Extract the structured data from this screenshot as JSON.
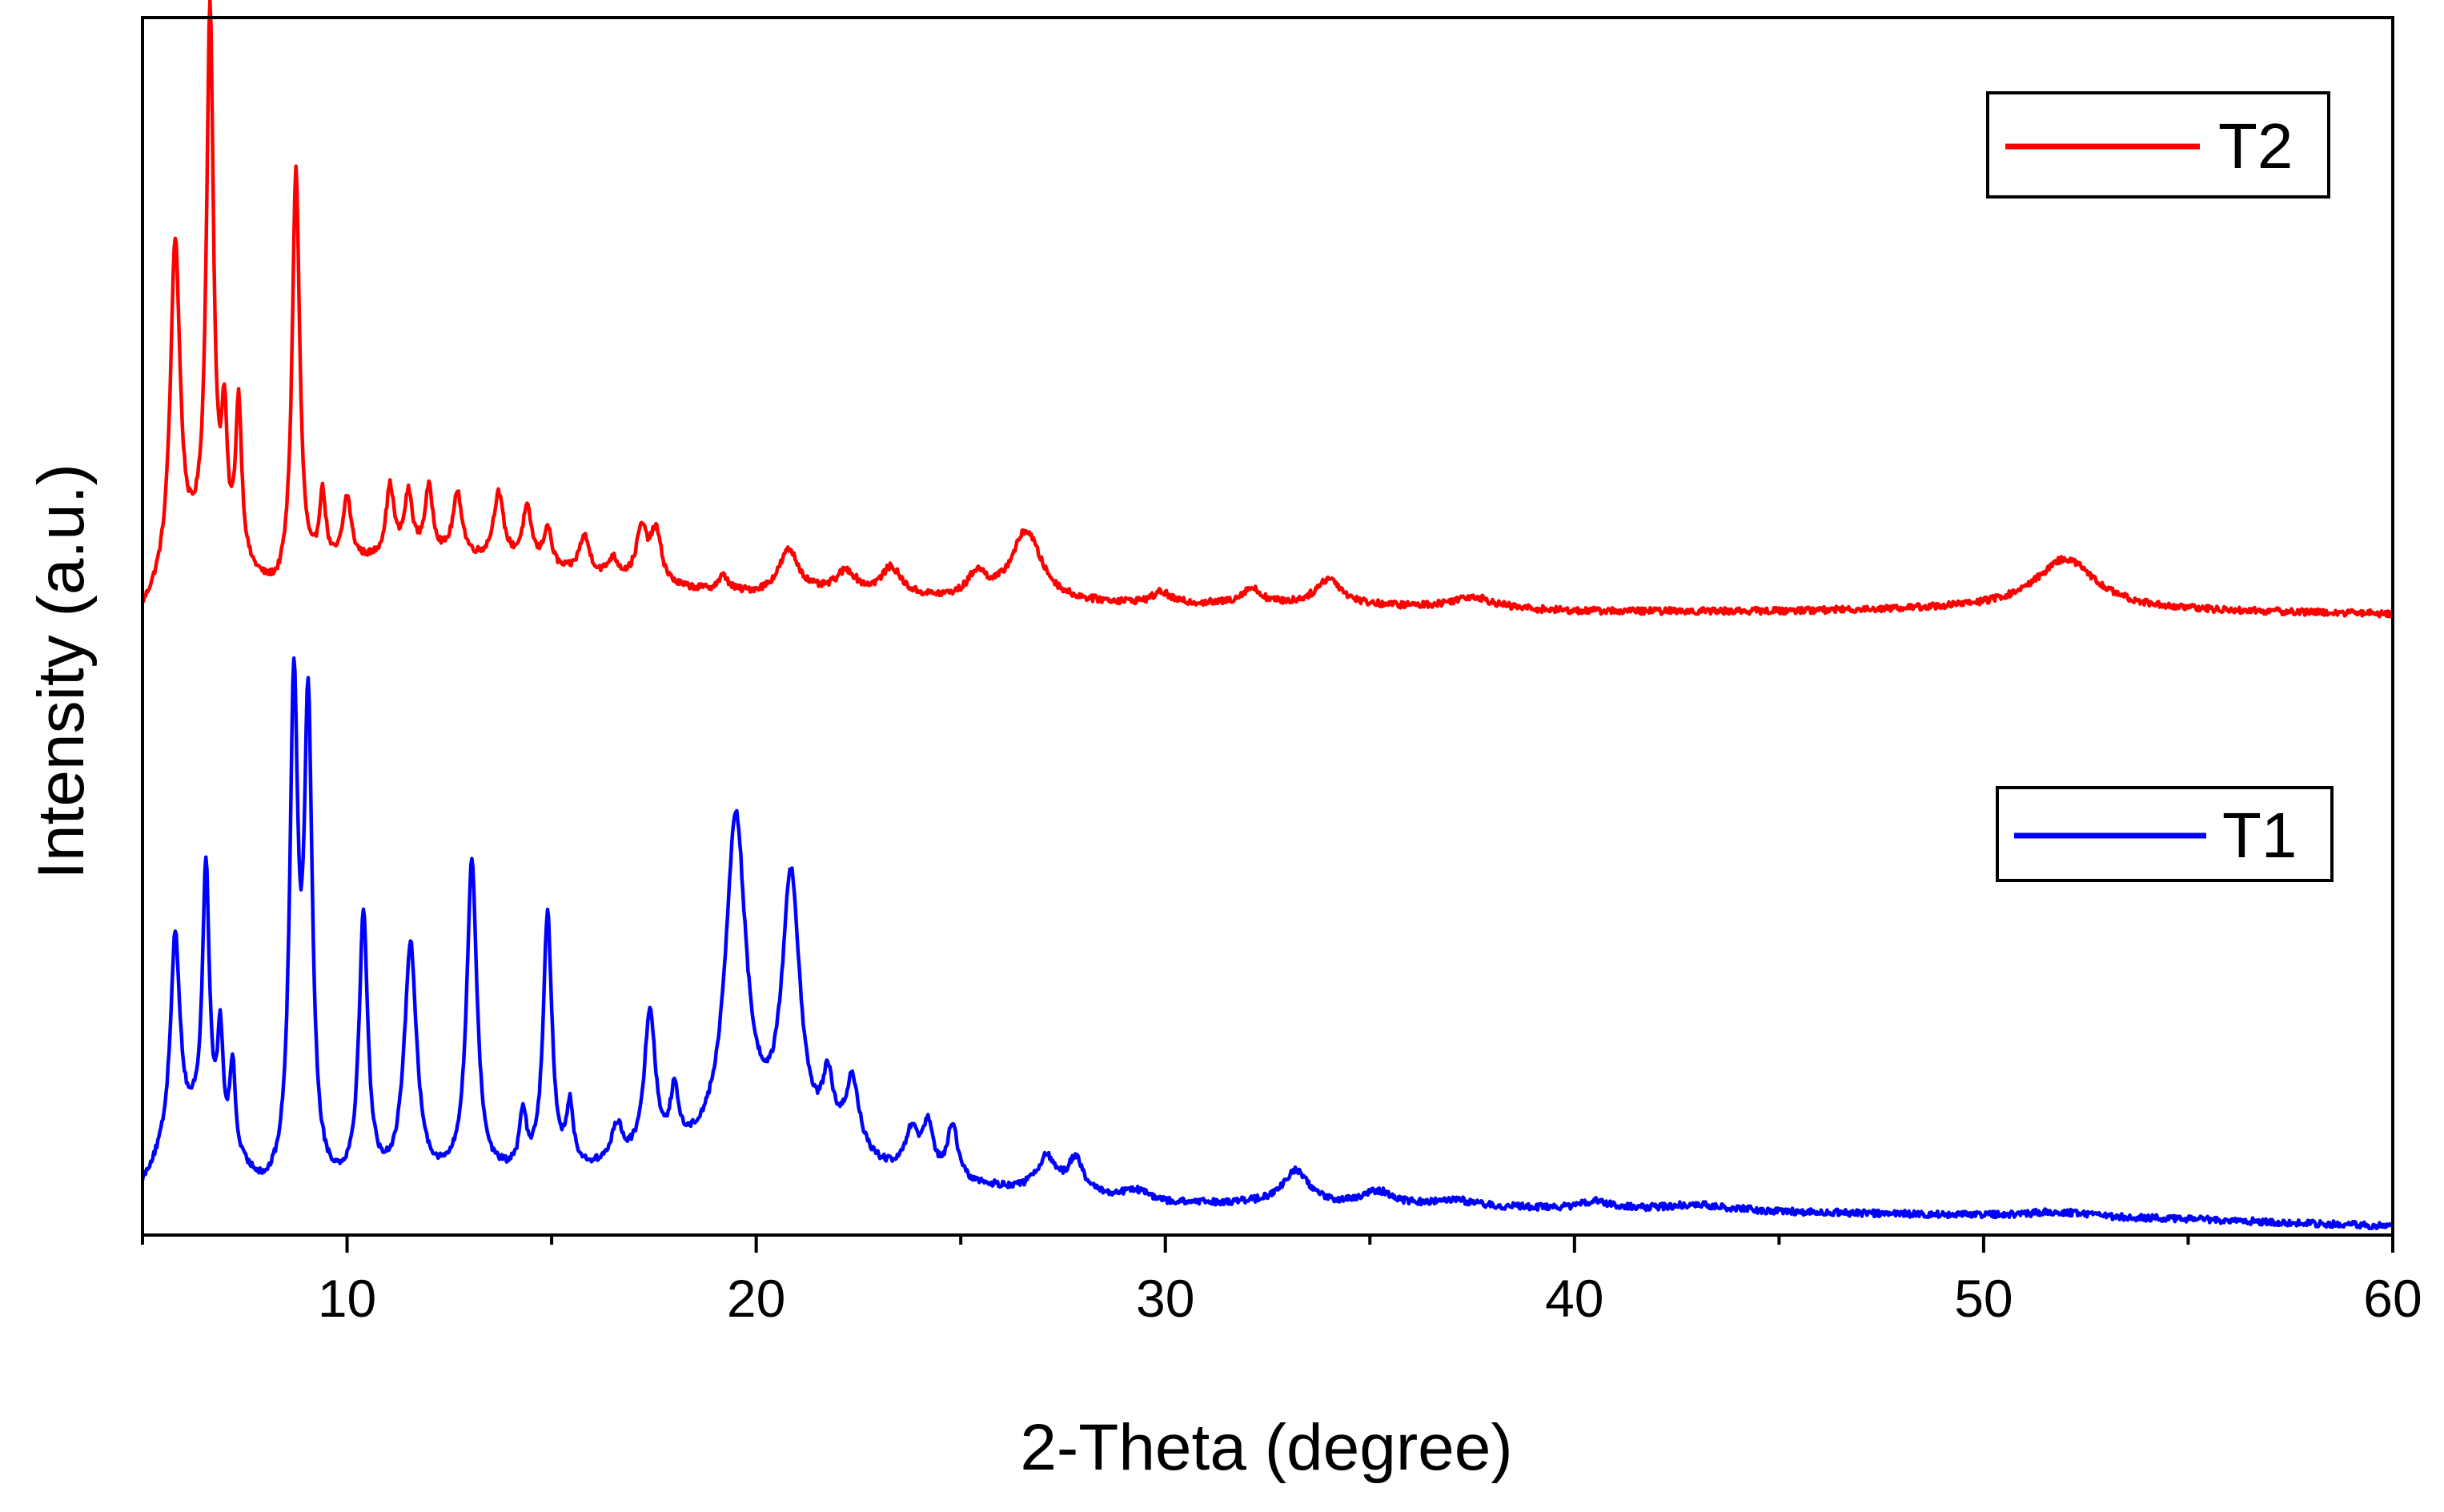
{
  "chart_data": {
    "type": "line",
    "title": "",
    "xlabel": "2-Theta (degree)",
    "ylabel": "Intensity (a.u.)",
    "xlim": [
      5,
      60
    ],
    "ylim": [
      0,
      100
    ],
    "grid": false,
    "x_ticks": [
      10,
      20,
      30,
      40,
      50,
      60
    ],
    "x_tick_labels": [
      "10",
      "20",
      "30",
      "40",
      "50",
      "60"
    ],
    "y_ticks": [],
    "colors": {
      "T2": "#ff0000",
      "T1": "#0000ff",
      "axis": "#000000"
    },
    "series": [
      {
        "name": "T2",
        "legend_label": "T2",
        "color": "#ff0000",
        "legend_position": "top-right",
        "baseline": {
          "x": [
            5.0,
            5.7,
            6.5,
            8.0,
            8.3,
            10,
            12,
            14,
            16,
            18,
            20,
            22,
            25,
            28,
            29,
            35,
            40,
            45,
            50,
            55,
            60
          ],
          "y": [
            51.0,
            54.0,
            56.5,
            53.0,
            52.5,
            55.0,
            55.5,
            55.0,
            53.8,
            53.0,
            52.5,
            52.5,
            52.0,
            51.8,
            51.8,
            51.6,
            51.2,
            51.2,
            51.4,
            51.2,
            51.0
          ]
        },
        "peaks": [
          {
            "x": 5.8,
            "h": 27.0,
            "w": 0.14
          },
          {
            "x": 6.65,
            "h": 44.0,
            "w": 0.1
          },
          {
            "x": 7.0,
            "h": 10.0,
            "w": 0.08
          },
          {
            "x": 7.35,
            "h": 13.0,
            "w": 0.09
          },
          {
            "x": 8.75,
            "h": 34.0,
            "w": 0.11
          },
          {
            "x": 9.4,
            "h": 6.0,
            "w": 0.1
          },
          {
            "x": 10.0,
            "h": 5.2,
            "w": 0.12
          },
          {
            "x": 11.05,
            "h": 5.8,
            "w": 0.12
          },
          {
            "x": 11.5,
            "h": 5.0,
            "w": 0.12
          },
          {
            "x": 12.0,
            "h": 5.4,
            "w": 0.12
          },
          {
            "x": 12.7,
            "h": 5.2,
            "w": 0.14
          },
          {
            "x": 13.7,
            "h": 5.5,
            "w": 0.15
          },
          {
            "x": 14.4,
            "h": 4.5,
            "w": 0.14
          },
          {
            "x": 14.9,
            "h": 3.2,
            "w": 0.12
          },
          {
            "x": 15.8,
            "h": 3.2,
            "w": 0.16
          },
          {
            "x": 16.5,
            "h": 1.6,
            "w": 0.16
          },
          {
            "x": 17.2,
            "h": 4.2,
            "w": 0.16
          },
          {
            "x": 17.55,
            "h": 4.2,
            "w": 0.16
          },
          {
            "x": 19.2,
            "h": 1.2,
            "w": 0.15
          },
          {
            "x": 20.8,
            "h": 3.6,
            "w": 0.3
          },
          {
            "x": 22.2,
            "h": 1.8,
            "w": 0.3
          },
          {
            "x": 23.3,
            "h": 2.3,
            "w": 0.3
          },
          {
            "x": 25.4,
            "h": 2.0,
            "w": 0.28
          },
          {
            "x": 26.6,
            "h": 5.8,
            "w": 0.45
          },
          {
            "x": 29.9,
            "h": 0.9,
            "w": 0.25
          },
          {
            "x": 32.1,
            "h": 1.3,
            "w": 0.3
          },
          {
            "x": 34.0,
            "h": 2.2,
            "w": 0.38
          },
          {
            "x": 37.5,
            "h": 1.0,
            "w": 0.6
          },
          {
            "x": 52.0,
            "h": 4.2,
            "w": 0.9
          }
        ]
      },
      {
        "name": "T1",
        "legend_label": "T1",
        "color": "#0000ff",
        "legend_position": "center-right",
        "baseline": {
          "x": [
            5.0,
            5.7,
            6.3,
            8.0,
            9.5,
            12,
            14,
            16,
            18,
            20,
            22,
            23.5,
            25,
            26.5,
            28.5,
            30,
            32,
            34,
            38,
            42,
            46,
            50,
            55,
            60
          ],
          "y": [
            4.0,
            7.0,
            8.5,
            3.2,
            3.2,
            4.0,
            4.5,
            5.0,
            6.0,
            7.0,
            6.2,
            4.6,
            4.0,
            3.5,
            3.0,
            2.5,
            2.5,
            2.3,
            2.2,
            2.0,
            1.8,
            1.6,
            1.3,
            0.7
          ]
        },
        "peaks": [
          {
            "x": 5.8,
            "h": 17.0,
            "w": 0.14
          },
          {
            "x": 6.55,
            "h": 22.0,
            "w": 0.1
          },
          {
            "x": 6.9,
            "h": 9.0,
            "w": 0.08
          },
          {
            "x": 7.2,
            "h": 7.5,
            "w": 0.08
          },
          {
            "x": 8.7,
            "h": 40.0,
            "w": 0.12
          },
          {
            "x": 9.05,
            "h": 38.0,
            "w": 0.12
          },
          {
            "x": 10.4,
            "h": 22.0,
            "w": 0.13
          },
          {
            "x": 11.55,
            "h": 19.5,
            "w": 0.18
          },
          {
            "x": 13.05,
            "h": 26.0,
            "w": 0.15
          },
          {
            "x": 14.3,
            "h": 4.5,
            "w": 0.1
          },
          {
            "x": 14.9,
            "h": 21.0,
            "w": 0.13
          },
          {
            "x": 15.45,
            "h": 4.8,
            "w": 0.1
          },
          {
            "x": 16.6,
            "h": 3.0,
            "w": 0.16
          },
          {
            "x": 17.4,
            "h": 12.0,
            "w": 0.16
          },
          {
            "x": 18.0,
            "h": 4.5,
            "w": 0.12
          },
          {
            "x": 19.5,
            "h": 27.0,
            "w": 0.3
          },
          {
            "x": 20.85,
            "h": 22.0,
            "w": 0.26
          },
          {
            "x": 21.75,
            "h": 5.0,
            "w": 0.16
          },
          {
            "x": 22.35,
            "h": 6.0,
            "w": 0.2
          },
          {
            "x": 23.8,
            "h": 3.5,
            "w": 0.2
          },
          {
            "x": 24.2,
            "h": 4.0,
            "w": 0.15
          },
          {
            "x": 24.8,
            "h": 4.5,
            "w": 0.15
          },
          {
            "x": 27.1,
            "h": 2.8,
            "w": 0.28
          },
          {
            "x": 27.8,
            "h": 2.8,
            "w": 0.22
          },
          {
            "x": 29.3,
            "h": 0.8,
            "w": 0.4
          },
          {
            "x": 33.2,
            "h": 2.8,
            "w": 0.4
          },
          {
            "x": 35.2,
            "h": 1.2,
            "w": 0.45
          },
          {
            "x": 37.0,
            "h": 0.6,
            "w": 0.6
          },
          {
            "x": 40.5,
            "h": 0.6,
            "w": 0.4
          },
          {
            "x": 43.0,
            "h": 0.5,
            "w": 1.0
          },
          {
            "x": 51.8,
            "h": 0.4,
            "w": 0.8
          }
        ]
      }
    ]
  }
}
